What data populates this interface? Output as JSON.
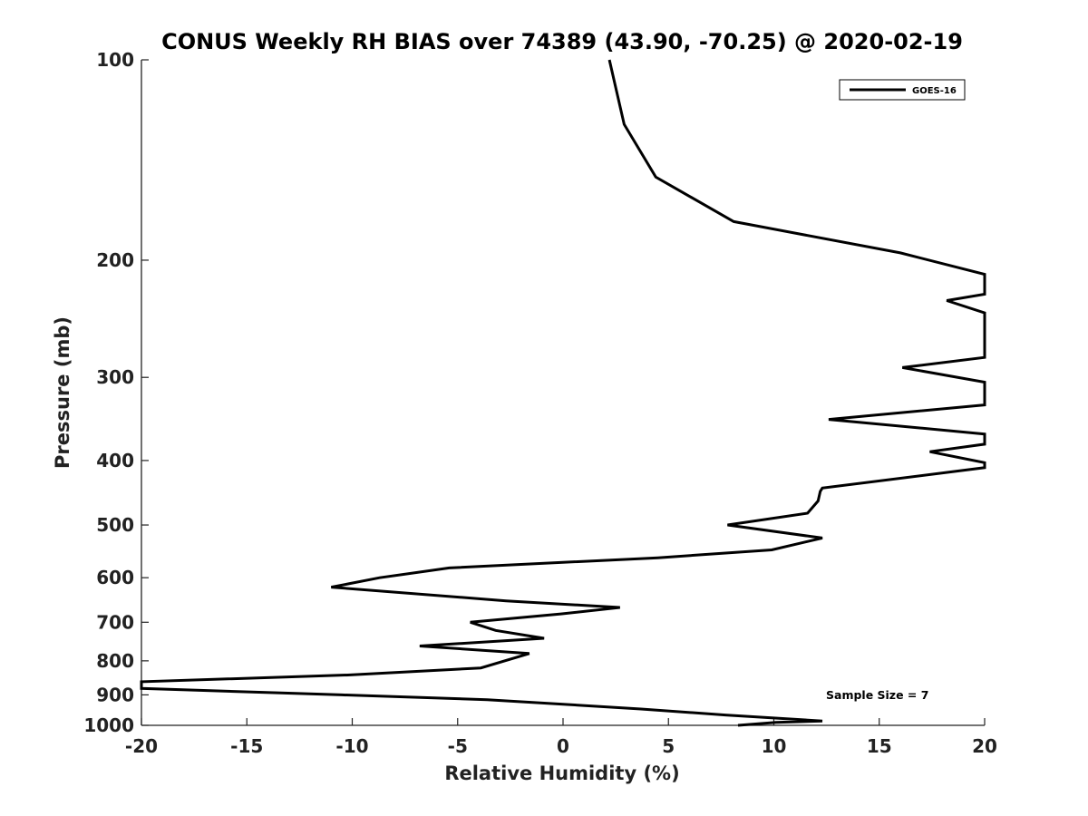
{
  "chart_data": {
    "type": "line",
    "title": "CONUS Weekly RH BIAS over 74389 (43.90, -70.25) @ 2020-02-19",
    "xlabel": "Relative Humidity (%)",
    "ylabel": "Pressure (mb)",
    "xlim": [
      -20,
      20
    ],
    "ylim": [
      1000,
      100
    ],
    "yscale": "log",
    "grid": false,
    "legend_position": "top-right",
    "x_ticks": [
      "-20",
      "-15",
      "-10",
      "-5",
      "0",
      "5",
      "10",
      "15",
      "20"
    ],
    "y_ticks": [
      "100",
      "200",
      "300",
      "400",
      "500",
      "600",
      "700",
      "800",
      "900",
      "1000"
    ],
    "annotation": "Sample Size = 7",
    "series": [
      {
        "name": "GOES-16",
        "color": "#000000",
        "points": [
          [
            2.2,
            100
          ],
          [
            2.9,
            125
          ],
          [
            4.4,
            150
          ],
          [
            8.1,
            175
          ],
          [
            16.0,
            195
          ],
          [
            20.0,
            210
          ],
          [
            20.0,
            225
          ],
          [
            18.2,
            230
          ],
          [
            20.0,
            240
          ],
          [
            20.0,
            280
          ],
          [
            16.1,
            290
          ],
          [
            20.0,
            305
          ],
          [
            20.0,
            330
          ],
          [
            12.6,
            347
          ],
          [
            20.0,
            365
          ],
          [
            20.0,
            378
          ],
          [
            17.4,
            388
          ],
          [
            20.0,
            403
          ],
          [
            20.0,
            410
          ],
          [
            12.3,
            440
          ],
          [
            12.2,
            445
          ],
          [
            12.1,
            460
          ],
          [
            11.6,
            480
          ],
          [
            7.8,
            500
          ],
          [
            12.3,
            523
          ],
          [
            9.9,
            545
          ],
          [
            4.5,
            560
          ],
          [
            -5.4,
            580
          ],
          [
            -8.7,
            600
          ],
          [
            -11.0,
            620
          ],
          [
            -2.7,
            650
          ],
          [
            2.7,
            665
          ],
          [
            -0.1,
            680
          ],
          [
            -4.4,
            700
          ],
          [
            -3.2,
            720
          ],
          [
            -0.9,
            740
          ],
          [
            -6.8,
            760
          ],
          [
            -1.6,
            780
          ],
          [
            -3.9,
            820
          ],
          [
            -10.1,
            840
          ],
          [
            -20.0,
            860
          ],
          [
            -20.0,
            880
          ],
          [
            -10.5,
            900
          ],
          [
            -3.6,
            915
          ],
          [
            0.1,
            930
          ],
          [
            3.7,
            945
          ],
          [
            7.7,
            965
          ],
          [
            12.3,
            985
          ],
          [
            10.1,
            990
          ],
          [
            8.3,
            1000
          ]
        ]
      }
    ]
  }
}
